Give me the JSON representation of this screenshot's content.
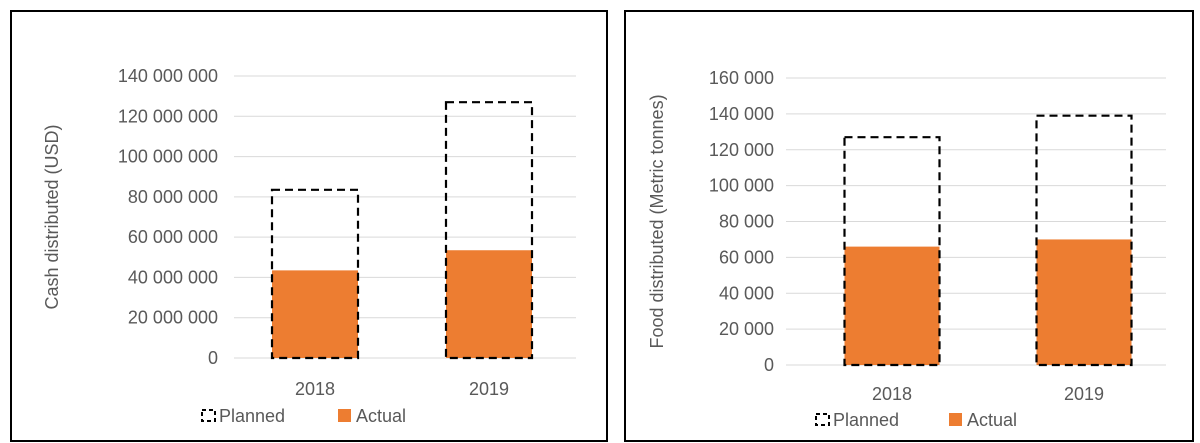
{
  "chart_data": [
    {
      "type": "bar",
      "categories": [
        "2018",
        "2019"
      ],
      "ylabel": "Cash distributed (USD)",
      "ylim": [
        0,
        140000000
      ],
      "ytick_labels": [
        "0",
        "20 000 000",
        "40 000 000",
        "60 000 000",
        "80 000 000",
        "100 000 000",
        "120 000 000",
        "140 000 000"
      ],
      "series": [
        {
          "name": "Planned",
          "values": [
            83500000,
            127000000
          ],
          "style": "dashed-outline",
          "color": "#000000"
        },
        {
          "name": "Actual",
          "values": [
            43500000,
            53500000
          ],
          "style": "filled",
          "color": "#ed7d31"
        }
      ],
      "legend": "bottom",
      "grid": true
    },
    {
      "type": "bar",
      "categories": [
        "2018",
        "2019"
      ],
      "ylabel": "Food distributed (Metric tonnes)",
      "ylim": [
        0,
        160000
      ],
      "ytick_labels": [
        "0",
        "20 000",
        "40 000",
        "60 000",
        "80 000",
        "100 000",
        "120 000",
        "140 000",
        "160 000"
      ],
      "series": [
        {
          "name": "Planned",
          "values": [
            127000,
            139000
          ],
          "style": "dashed-outline",
          "color": "#000000"
        },
        {
          "name": "Actual",
          "values": [
            66000,
            70000
          ],
          "style": "filled",
          "color": "#ed7d31"
        }
      ],
      "legend": "bottom",
      "grid": true
    }
  ]
}
